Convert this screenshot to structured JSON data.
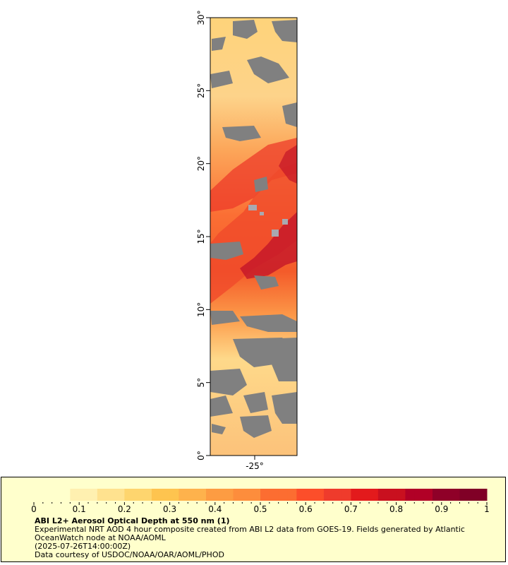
{
  "map": {
    "y_axis_labels": [
      "0°",
      "5°",
      "10°",
      "15°",
      "20°",
      "25°",
      "30°"
    ],
    "x_axis_labels": [
      "-25°"
    ],
    "latitude_range": [
      0,
      30
    ],
    "colors": {
      "missing": "#808080",
      "frame": "#000000"
    }
  },
  "legend": {
    "title": "ABI L2+ Aerosol Optical Depth at 550 nm (1)",
    "description": "Experimental NRT AOD 4 hour composite created from ABI L2 data from GOES-19. Fields generated by Atlantic OceanWatch node at NOAA/AOML",
    "timestamp": "(2025-07-26T14:00:00Z)",
    "credit": "Data courtesy of USDOC/NOAA/OAR/AOML/PHOD",
    "ticks": [
      "0",
      "0.1",
      "0.2",
      "0.3",
      "0.4",
      "0.5",
      "0.6",
      "0.7",
      "0.8",
      "0.9",
      "1"
    ],
    "background_color": "#ffffcc",
    "palette": [
      "#ffffcc",
      "#fff0b0",
      "#ffe28f",
      "#fed56e",
      "#fec44f",
      "#feb24c",
      "#fd9c42",
      "#fd8d3c",
      "#fc6d31",
      "#fc4e2a",
      "#ef3b2c",
      "#e31a1c",
      "#c9101f",
      "#b10026",
      "#8f0028",
      "#800026"
    ]
  }
}
